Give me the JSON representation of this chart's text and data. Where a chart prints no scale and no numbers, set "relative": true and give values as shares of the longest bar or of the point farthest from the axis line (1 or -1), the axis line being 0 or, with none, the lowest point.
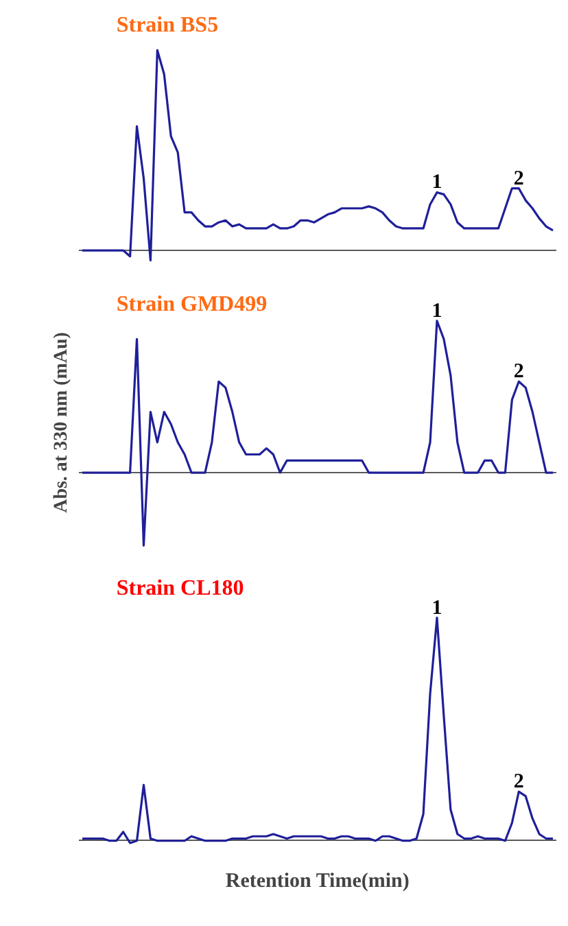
{
  "chart_data": [
    {
      "type": "line",
      "title": "Strain BS5",
      "relative": true,
      "color": "#1f1f9a",
      "categories": [
        null,
        null,
        null,
        null,
        null,
        null,
        null,
        null,
        null,
        null,
        null,
        null,
        null,
        null,
        null,
        null,
        null,
        null,
        null,
        null,
        null,
        null,
        null,
        null,
        null,
        null,
        null,
        null,
        null,
        null,
        null,
        null,
        null,
        null,
        null,
        null,
        null,
        null,
        null,
        null,
        null,
        null,
        null,
        null,
        null,
        null,
        null,
        null,
        null,
        null,
        null,
        null,
        null,
        null,
        null,
        null,
        null,
        null,
        null,
        null,
        null,
        null,
        null,
        null,
        null,
        null,
        null,
        null,
        null,
        null
      ],
      "values": [
        0,
        0,
        0,
        0,
        0,
        0,
        0,
        -0.03,
        0.62,
        0.36,
        -0.05,
        1,
        0.88,
        0.57,
        0.49,
        0.19,
        0.19,
        0.15,
        0.12,
        0.12,
        0.14,
        0.15,
        0.12,
        0.13,
        0.11,
        0.11,
        0.11,
        0.11,
        0.13,
        0.11,
        0.11,
        0.12,
        0.15,
        0.15,
        0.14,
        0.16,
        0.18,
        0.19,
        0.21,
        0.21,
        0.21,
        0.21,
        0.22,
        0.21,
        0.19,
        0.15,
        0.12,
        0.11,
        0.11,
        0.11,
        0.11,
        0.23,
        0.29,
        0.28,
        0.23,
        0.14,
        0.11,
        0.11,
        0.11,
        0.11,
        0.11,
        0.11,
        0.21,
        0.31,
        0.31,
        0.25,
        0.21,
        0.16,
        0.12,
        0.1
      ],
      "annotations": [
        {
          "text": "1",
          "y": 0.29
        },
        {
          "text": "2",
          "y": 0.31
        }
      ]
    },
    {
      "type": "line",
      "title": "Strain GMD499",
      "ylabel": "Abs. at 330 nm (mAu)",
      "relative": true,
      "color": "#1f1f9a",
      "categories": [
        null,
        null,
        null,
        null,
        null,
        null,
        null,
        null,
        null,
        null,
        null,
        null,
        null,
        null,
        null,
        null,
        null,
        null,
        null,
        null,
        null,
        null,
        null,
        null,
        null,
        null,
        null,
        null,
        null,
        null,
        null,
        null,
        null,
        null,
        null,
        null,
        null,
        null,
        null,
        null,
        null,
        null,
        null,
        null,
        null,
        null,
        null,
        null,
        null,
        null,
        null,
        null,
        null,
        null,
        null,
        null,
        null,
        null,
        null,
        null,
        null,
        null,
        null,
        null,
        null,
        null,
        null,
        null,
        null,
        null
      ],
      "values": [
        0,
        0,
        0,
        0,
        0,
        0,
        0,
        0,
        0.88,
        -0.48,
        0.4,
        0.2,
        0.4,
        0.32,
        0.2,
        0.12,
        0,
        0,
        0,
        0.2,
        0.6,
        0.56,
        0.4,
        0.2,
        0.12,
        0.12,
        0.12,
        0.16,
        0.12,
        0,
        0.08,
        0.08,
        0.08,
        0.08,
        0.08,
        0.08,
        0.08,
        0.08,
        0.08,
        0.08,
        0.08,
        0.08,
        0,
        0,
        0,
        0,
        0,
        0,
        0,
        0,
        0,
        0.2,
        1,
        0.88,
        0.64,
        0.2,
        0,
        0,
        0,
        0.08,
        0.08,
        0,
        0,
        0.48,
        0.6,
        0.56,
        0.4,
        0.2,
        0,
        0
      ],
      "annotations": [
        {
          "text": "1",
          "y": 1
        },
        {
          "text": "2",
          "y": 0.6
        }
      ]
    },
    {
      "type": "line",
      "title": "Strain CL180",
      "xlabel": "Retention Time(min)",
      "relative": true,
      "color": "#1f1f9a",
      "categories": [
        null,
        null,
        null,
        null,
        null,
        null,
        null,
        null,
        null,
        null,
        null,
        null,
        null,
        null,
        null,
        null,
        null,
        null,
        null,
        null,
        null,
        null,
        null,
        null,
        null,
        null,
        null,
        null,
        null,
        null,
        null,
        null,
        null,
        null,
        null,
        null,
        null,
        null,
        null,
        null,
        null,
        null,
        null,
        null,
        null,
        null,
        null,
        null,
        null,
        null,
        null,
        null,
        null,
        null,
        null,
        null,
        null,
        null,
        null,
        null,
        null,
        null,
        null,
        null,
        null,
        null,
        null,
        null,
        null,
        null
      ],
      "values": [
        0.01,
        0.01,
        0.01,
        0.01,
        0,
        0,
        0.04,
        -0.01,
        0,
        0.25,
        0.01,
        0,
        0,
        0,
        0,
        0,
        0.02,
        0.01,
        0,
        0,
        0,
        0,
        0.01,
        0.01,
        0.01,
        0.02,
        0.02,
        0.02,
        0.03,
        0.02,
        0.01,
        0.02,
        0.02,
        0.02,
        0.02,
        0.02,
        0.01,
        0.01,
        0.02,
        0.02,
        0.01,
        0.01,
        0.01,
        0,
        0.02,
        0.02,
        0.01,
        0,
        0,
        0.01,
        0.12,
        0.66,
        1,
        0.56,
        0.14,
        0.03,
        0.01,
        0.01,
        0.02,
        0.01,
        0.01,
        0.01,
        0,
        0.08,
        0.22,
        0.2,
        0.1,
        0.03,
        0.01,
        0.01
      ],
      "annotations": [
        {
          "text": "1",
          "y": 1
        },
        {
          "text": "2",
          "y": 0.22
        }
      ]
    }
  ]
}
